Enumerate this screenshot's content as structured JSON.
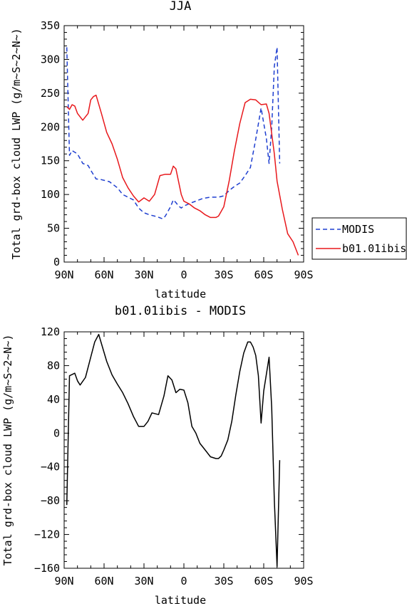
{
  "chart_data": [
    {
      "type": "line",
      "title": "JJA",
      "xlabel": "latitude",
      "ylabel": "Total grd-box cloud LWP (g/m~S~2~N~)",
      "xlim": [
        90,
        -90
      ],
      "ylim": [
        0,
        350
      ],
      "xticks": [
        90,
        60,
        30,
        0,
        -30,
        -60,
        -90
      ],
      "xtick_labels": [
        "90N",
        "60N",
        "30N",
        "0",
        "30S",
        "60S",
        "90S"
      ],
      "yticks": [
        0,
        50,
        100,
        150,
        200,
        250,
        300,
        350
      ],
      "ytick_labels": [
        "0",
        "50",
        "100",
        "150",
        "200",
        "250",
        "300",
        "350"
      ],
      "legend": "right",
      "series": [
        {
          "name": "MODIS",
          "color": "#1f3fd0",
          "dash": "dashed",
          "x": [
            88,
            86,
            84,
            80,
            76,
            72,
            70,
            66,
            62,
            56,
            50,
            46,
            42,
            38,
            34,
            30,
            26,
            20,
            16,
            14,
            10,
            8,
            6,
            4,
            2,
            0,
            -6,
            -10,
            -14,
            -20,
            -26,
            -30,
            -34,
            -38,
            -42,
            -46,
            -50,
            -54,
            -58,
            -62,
            -64,
            -66,
            -68,
            -70,
            -72
          ],
          "y": [
            318,
            158,
            165,
            160,
            146,
            143,
            136,
            123,
            122,
            119,
            110,
            100,
            96,
            92,
            80,
            73,
            70,
            67,
            64,
            68,
            82,
            92,
            88,
            83,
            80,
            83,
            88,
            91,
            94,
            96,
            96,
            98,
            106,
            112,
            117,
            128,
            140,
            182,
            228,
            183,
            146,
            200,
            290,
            318,
            146
          ]
        },
        {
          "name": "b01.01ibis",
          "color": "#e8181c",
          "dash": "solid",
          "x": [
            88,
            86,
            84,
            82,
            80,
            76,
            72,
            70,
            68,
            66,
            62,
            58,
            54,
            50,
            46,
            42,
            38,
            34,
            30,
            26,
            22,
            18,
            14,
            10,
            8,
            6,
            2,
            0,
            -4,
            -8,
            -12,
            -16,
            -20,
            -24,
            -26,
            -28,
            -30,
            -34,
            -38,
            -42,
            -46,
            -50,
            -54,
            -58,
            -62,
            -64,
            -66,
            -68,
            -70,
            -74,
            -78,
            -82,
            -86
          ],
          "y": [
            230,
            226,
            233,
            231,
            220,
            210,
            220,
            240,
            245,
            247,
            220,
            192,
            175,
            152,
            125,
            110,
            98,
            89,
            95,
            90,
            100,
            128,
            130,
            130,
            142,
            138,
            100,
            90,
            86,
            80,
            76,
            70,
            66,
            66,
            68,
            75,
            82,
            120,
            165,
            205,
            236,
            241,
            240,
            233,
            234,
            220,
            190,
            160,
            120,
            78,
            42,
            30,
            10
          ]
        }
      ]
    },
    {
      "type": "line",
      "title": "b01.01ibis - MODIS",
      "xlabel": "latitude",
      "ylabel": "Total grd-box cloud LWP (g/m~S~2~N~)",
      "xlim": [
        90,
        -90
      ],
      "ylim": [
        -160,
        120
      ],
      "xticks": [
        90,
        60,
        30,
        0,
        -30,
        -60,
        -90
      ],
      "xtick_labels": [
        "90N",
        "60N",
        "30N",
        "0",
        "30S",
        "60S",
        "90S"
      ],
      "yticks": [
        -160,
        -120,
        -80,
        -40,
        0,
        40,
        80,
        120
      ],
      "ytick_labels": [
        "−160",
        "−120",
        "−80",
        "−40",
        "0",
        "40",
        "80",
        "120"
      ],
      "series": [
        {
          "color": "#000000",
          "dash": "solid",
          "x": [
            88,
            86,
            82,
            80,
            78,
            74,
            70,
            67,
            64,
            58,
            54,
            50,
            46,
            42,
            38,
            36,
            34,
            30,
            27,
            24,
            19,
            15,
            12,
            9,
            6,
            3,
            0,
            -3,
            -6,
            -9,
            -12,
            -16,
            -20,
            -24,
            -26,
            -28,
            -30,
            -33,
            -36,
            -39,
            -42,
            -45,
            -48,
            -50,
            -52,
            -54,
            -56,
            -58,
            -60,
            -64,
            -66,
            -68,
            -70,
            -72
          ],
          "y": [
            -85,
            68,
            71,
            62,
            57,
            66,
            90,
            108,
            117,
            85,
            69,
            58,
            48,
            35,
            20,
            14,
            8,
            8,
            14,
            24,
            22,
            44,
            68,
            63,
            48,
            52,
            51,
            36,
            8,
            0,
            -12,
            -20,
            -28,
            -30,
            -30,
            -27,
            -20,
            -8,
            14,
            45,
            73,
            95,
            108,
            108,
            102,
            92,
            68,
            12,
            50,
            90,
            30,
            -80,
            -158,
            -32
          ]
        }
      ]
    }
  ],
  "legend_labels": [
    "MODIS",
    "b01.01ibis"
  ]
}
